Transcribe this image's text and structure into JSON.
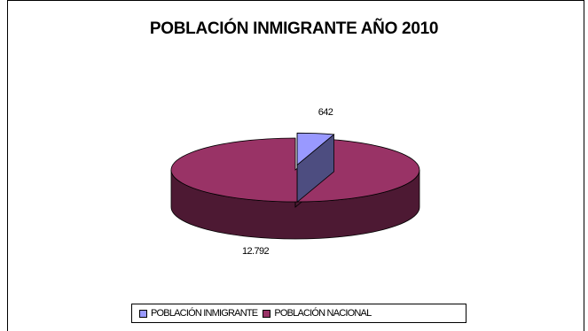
{
  "chart_data": {
    "type": "pie",
    "title": "POBLACIÓN INMIGRANTE AÑO 2010",
    "categories": [
      "POBLACIÓN INMIGRANTE",
      "POBLACIÓN NACIONAL"
    ],
    "values": [
      642,
      12792
    ],
    "data_labels": [
      "642",
      "12.792"
    ],
    "colors": [
      "#9999ff",
      "#993366"
    ],
    "side_colors": [
      "#4d4d80",
      "#4d1933"
    ],
    "exploded": [
      true,
      false
    ],
    "three_d": true,
    "legend_position": "bottom",
    "grid": false
  }
}
